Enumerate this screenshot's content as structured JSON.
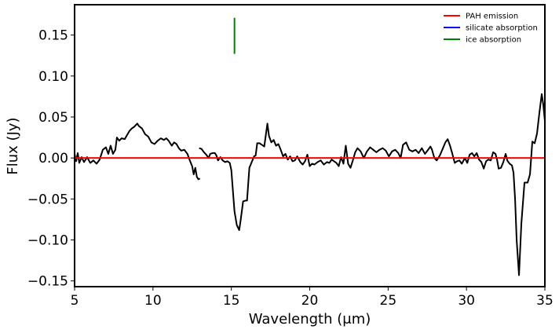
{
  "chart_data": {
    "type": "line",
    "xlabel": "Wavelength (μm)",
    "ylabel": "Flux (Jy)",
    "xlim": [
      5,
      35
    ],
    "ylim": [
      -0.157,
      0.187
    ],
    "xticks": [
      5,
      10,
      15,
      20,
      25,
      30,
      35
    ],
    "yticks": [
      -0.15,
      -0.1,
      -0.05,
      0.0,
      0.05,
      0.1,
      0.15
    ],
    "ytick_labels": [
      "−0.15",
      "−0.10",
      "−0.05",
      "0.00",
      "0.05",
      "0.10",
      "0.15"
    ],
    "grid": false,
    "legend_position": "top-right",
    "legend": [
      {
        "label": "PAH emission",
        "color": "#ff0000"
      },
      {
        "label": "silicate absorption",
        "color": "#0000ff"
      },
      {
        "label": "ice absorption",
        "color": "#008000"
      }
    ],
    "series": [
      {
        "color": "#000000",
        "segments": [
          [
            [
              5.0,
              0.005
            ],
            [
              5.1,
              -0.004
            ],
            [
              5.2,
              0.006
            ],
            [
              5.3,
              -0.006
            ],
            [
              5.45,
              0.001
            ],
            [
              5.6,
              -0.005
            ],
            [
              5.8,
              0.001
            ],
            [
              6.0,
              -0.006
            ],
            [
              6.2,
              -0.003
            ],
            [
              6.4,
              -0.007
            ],
            [
              6.6,
              -0.002
            ],
            [
              6.8,
              0.01
            ],
            [
              7.0,
              0.013
            ],
            [
              7.15,
              0.005
            ],
            [
              7.3,
              0.015
            ],
            [
              7.45,
              0.005
            ],
            [
              7.6,
              0.01
            ],
            [
              7.7,
              0.025
            ],
            [
              7.85,
              0.021
            ],
            [
              8.0,
              0.024
            ],
            [
              8.2,
              0.023
            ],
            [
              8.35,
              0.028
            ],
            [
              8.5,
              0.033
            ],
            [
              8.65,
              0.036
            ],
            [
              8.8,
              0.038
            ],
            [
              9.0,
              0.042
            ],
            [
              9.1,
              0.039
            ],
            [
              9.3,
              0.036
            ],
            [
              9.5,
              0.029
            ],
            [
              9.7,
              0.026
            ],
            [
              9.9,
              0.019
            ],
            [
              10.1,
              0.017
            ],
            [
              10.3,
              0.021
            ],
            [
              10.5,
              0.024
            ],
            [
              10.7,
              0.022
            ],
            [
              10.85,
              0.024
            ],
            [
              11.0,
              0.021
            ],
            [
              11.2,
              0.015
            ],
            [
              11.35,
              0.019
            ],
            [
              11.5,
              0.017
            ],
            [
              11.65,
              0.012
            ],
            [
              11.8,
              0.009
            ],
            [
              12.0,
              0.01
            ],
            [
              12.2,
              0.005
            ],
            [
              12.35,
              -0.003
            ],
            [
              12.5,
              -0.01
            ],
            [
              12.6,
              -0.02
            ],
            [
              12.7,
              -0.012
            ],
            [
              12.8,
              -0.023
            ],
            [
              12.9,
              -0.026
            ],
            [
              13.0,
              -0.025
            ]
          ],
          [
            [
              12.95,
              0.012
            ],
            [
              13.1,
              0.011
            ],
            [
              13.25,
              0.007
            ],
            [
              13.4,
              0.004
            ],
            [
              13.55,
              0.0
            ],
            [
              13.65,
              0.005
            ],
            [
              13.8,
              0.006
            ],
            [
              13.95,
              0.006
            ],
            [
              14.05,
              0.003
            ],
            [
              14.15,
              -0.003
            ],
            [
              14.3,
              0.001
            ],
            [
              14.45,
              -0.003
            ],
            [
              14.6,
              -0.005
            ],
            [
              14.75,
              -0.004
            ],
            [
              14.9,
              -0.006
            ],
            [
              15.0,
              -0.015
            ],
            [
              15.1,
              -0.04
            ],
            [
              15.2,
              -0.065
            ],
            [
              15.35,
              -0.082
            ],
            [
              15.5,
              -0.088
            ],
            [
              15.6,
              -0.075
            ],
            [
              15.75,
              -0.053
            ],
            [
              15.9,
              -0.052
            ],
            [
              16.0,
              -0.052
            ],
            [
              16.15,
              -0.012
            ],
            [
              16.3,
              -0.005
            ],
            [
              16.45,
              0.002
            ],
            [
              16.55,
              0.003
            ],
            [
              16.65,
              0.018
            ],
            [
              16.8,
              0.018
            ],
            [
              16.95,
              0.016
            ],
            [
              17.1,
              0.014
            ],
            [
              17.3,
              0.042
            ],
            [
              17.4,
              0.027
            ],
            [
              17.55,
              0.019
            ],
            [
              17.7,
              0.022
            ],
            [
              17.85,
              0.015
            ],
            [
              18.0,
              0.017
            ],
            [
              18.15,
              0.01
            ],
            [
              18.3,
              0.002
            ],
            [
              18.45,
              0.005
            ],
            [
              18.6,
              -0.002
            ],
            [
              18.75,
              0.002
            ],
            [
              18.9,
              -0.004
            ],
            [
              19.05,
              -0.003
            ],
            [
              19.2,
              0.002
            ],
            [
              19.4,
              -0.005
            ],
            [
              19.55,
              -0.008
            ],
            [
              19.7,
              -0.004
            ],
            [
              19.85,
              0.004
            ],
            [
              20.0,
              -0.01
            ],
            [
              20.15,
              -0.007
            ],
            [
              20.3,
              -0.008
            ],
            [
              20.5,
              -0.005
            ],
            [
              20.7,
              -0.003
            ],
            [
              20.9,
              -0.008
            ],
            [
              21.1,
              -0.005
            ],
            [
              21.25,
              -0.006
            ],
            [
              21.4,
              -0.002
            ],
            [
              21.55,
              -0.004
            ],
            [
              21.7,
              -0.006
            ],
            [
              21.85,
              -0.01
            ],
            [
              22.0,
              0.001
            ],
            [
              22.15,
              -0.007
            ],
            [
              22.3,
              0.015
            ],
            [
              22.45,
              -0.007
            ],
            [
              22.6,
              -0.012
            ],
            [
              22.75,
              -0.003
            ],
            [
              22.9,
              0.007
            ],
            [
              23.05,
              0.012
            ],
            [
              23.25,
              0.008
            ],
            [
              23.45,
              0.0
            ],
            [
              23.65,
              0.008
            ],
            [
              23.85,
              0.013
            ],
            [
              24.05,
              0.01
            ],
            [
              24.25,
              0.007
            ],
            [
              24.45,
              0.01
            ],
            [
              24.65,
              0.012
            ],
            [
              24.85,
              0.009
            ],
            [
              25.05,
              0.002
            ],
            [
              25.25,
              0.008
            ],
            [
              25.45,
              0.01
            ],
            [
              25.65,
              0.006
            ],
            [
              25.8,
              0.0
            ],
            [
              25.95,
              0.016
            ],
            [
              26.15,
              0.019
            ],
            [
              26.35,
              0.01
            ],
            [
              26.55,
              0.008
            ],
            [
              26.75,
              0.01
            ],
            [
              26.95,
              0.006
            ],
            [
              27.15,
              0.012
            ],
            [
              27.35,
              0.005
            ],
            [
              27.55,
              0.01
            ],
            [
              27.7,
              0.014
            ],
            [
              27.8,
              0.01
            ],
            [
              27.95,
              0.0
            ],
            [
              28.1,
              -0.003
            ],
            [
              28.3,
              0.003
            ],
            [
              28.5,
              0.012
            ],
            [
              28.65,
              0.019
            ],
            [
              28.8,
              0.023
            ],
            [
              28.95,
              0.015
            ],
            [
              29.1,
              0.005
            ],
            [
              29.25,
              -0.006
            ],
            [
              29.4,
              -0.004
            ],
            [
              29.55,
              -0.003
            ],
            [
              29.7,
              -0.007
            ],
            [
              29.9,
              0.0
            ],
            [
              30.05,
              -0.006
            ],
            [
              30.2,
              0.004
            ],
            [
              30.35,
              0.006
            ],
            [
              30.5,
              0.002
            ],
            [
              30.65,
              0.006
            ],
            [
              30.8,
              -0.002
            ],
            [
              30.95,
              -0.005
            ],
            [
              31.1,
              -0.013
            ],
            [
              31.25,
              -0.004
            ],
            [
              31.4,
              -0.002
            ],
            [
              31.55,
              -0.003
            ],
            [
              31.7,
              0.007
            ],
            [
              31.85,
              0.005
            ],
            [
              31.95,
              -0.002
            ],
            [
              32.05,
              -0.013
            ],
            [
              32.2,
              -0.012
            ],
            [
              32.35,
              -0.005
            ],
            [
              32.5,
              0.005
            ],
            [
              32.6,
              -0.003
            ],
            [
              32.75,
              -0.007
            ],
            [
              32.9,
              -0.009
            ],
            [
              33.0,
              -0.018
            ],
            [
              33.1,
              -0.05
            ],
            [
              33.2,
              -0.1
            ],
            [
              33.35,
              -0.143
            ],
            [
              33.5,
              -0.08
            ],
            [
              33.7,
              -0.03
            ],
            [
              33.9,
              -0.03
            ],
            [
              34.05,
              -0.02
            ],
            [
              34.2,
              0.02
            ],
            [
              34.35,
              0.018
            ],
            [
              34.5,
              0.03
            ],
            [
              34.65,
              0.055
            ],
            [
              34.8,
              0.078
            ],
            [
              34.9,
              0.065
            ],
            [
              35.0,
              0.045
            ]
          ]
        ]
      }
    ],
    "reference_lines": [
      {
        "kind": "horizontal",
        "y": 0.0,
        "color": "#ff0000"
      },
      {
        "kind": "vertical",
        "x": 15.2,
        "y0": 0.127,
        "y1": 0.171,
        "color": "#008000"
      }
    ]
  }
}
